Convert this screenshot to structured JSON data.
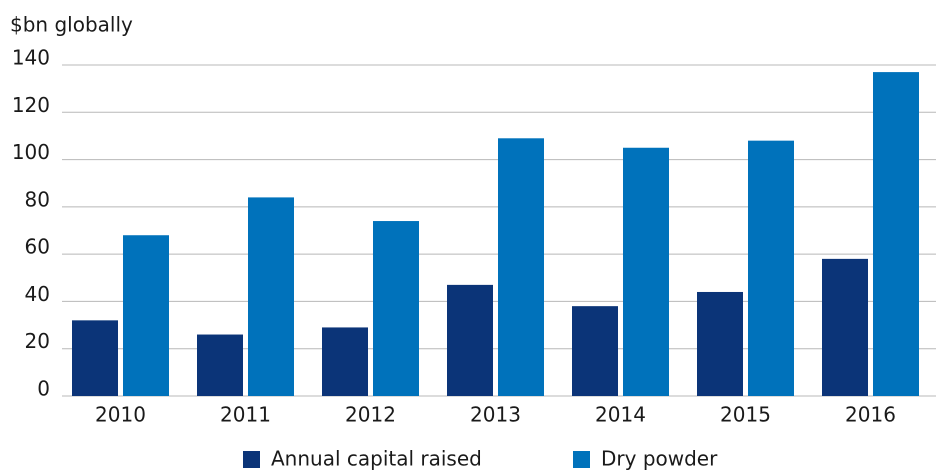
{
  "chart_data": {
    "type": "bar",
    "y_axis_label": "$bn globally",
    "categories": [
      "2010",
      "2011",
      "2012",
      "2013",
      "2014",
      "2015",
      "2016"
    ],
    "series": [
      {
        "name": "Annual capital raised",
        "color": "#0b3478",
        "values": [
          32,
          26,
          29,
          47,
          38,
          44,
          58
        ]
      },
      {
        "name": "Dry powder",
        "color": "#0072bb",
        "values": [
          68,
          84,
          74,
          109,
          105,
          108,
          137
        ]
      }
    ],
    "ylim": [
      0,
      140
    ],
    "yticks": [
      0,
      20,
      40,
      60,
      80,
      100,
      120,
      140
    ],
    "grid": true,
    "legend": "bottom"
  }
}
